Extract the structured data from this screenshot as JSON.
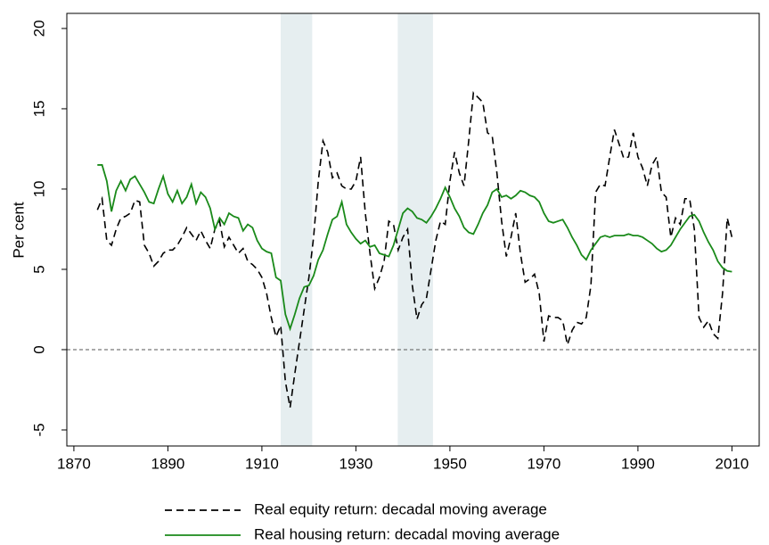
{
  "chart_data": {
    "type": "line",
    "y_label": "Per cent",
    "x": [
      1875,
      1876,
      1877,
      1878,
      1879,
      1880,
      1881,
      1882,
      1883,
      1884,
      1885,
      1886,
      1887,
      1888,
      1889,
      1890,
      1891,
      1892,
      1893,
      1894,
      1895,
      1896,
      1897,
      1898,
      1899,
      1900,
      1901,
      1902,
      1903,
      1904,
      1905,
      1906,
      1907,
      1908,
      1909,
      1910,
      1911,
      1912,
      1913,
      1914,
      1915,
      1916,
      1917,
      1918,
      1919,
      1920,
      1921,
      1922,
      1923,
      1924,
      1925,
      1926,
      1927,
      1928,
      1929,
      1930,
      1931,
      1932,
      1933,
      1934,
      1935,
      1936,
      1937,
      1938,
      1939,
      1940,
      1941,
      1942,
      1943,
      1944,
      1945,
      1946,
      1947,
      1948,
      1949,
      1950,
      1951,
      1952,
      1953,
      1954,
      1955,
      1956,
      1957,
      1958,
      1959,
      1960,
      1961,
      1962,
      1963,
      1964,
      1965,
      1966,
      1967,
      1968,
      1969,
      1970,
      1971,
      1972,
      1973,
      1974,
      1975,
      1976,
      1977,
      1978,
      1979,
      1980,
      1981,
      1982,
      1983,
      1984,
      1985,
      1986,
      1987,
      1988,
      1989,
      1990,
      1991,
      1992,
      1993,
      1994,
      1995,
      1996,
      1997,
      1998,
      1999,
      2000,
      2001,
      2002,
      2003,
      2004,
      2005,
      2006,
      2007,
      2008,
      2009,
      2010
    ],
    "series": [
      {
        "name": "Real equity return: decadal moving average",
        "color": "#000000",
        "dash": true,
        "values": [
          8.7,
          9.4,
          6.8,
          6.5,
          7.5,
          8.2,
          8.3,
          8.5,
          9.3,
          9.2,
          6.5,
          6.0,
          5.2,
          5.5,
          6.0,
          6.2,
          6.2,
          6.5,
          7.0,
          7.6,
          7.2,
          6.8,
          7.4,
          6.8,
          6.3,
          7.5,
          8.0,
          6.4,
          7.0,
          6.5,
          6.0,
          6.3,
          5.5,
          5.3,
          5.0,
          4.5,
          3.5,
          2.0,
          0.8,
          1.5,
          -2.0,
          -3.6,
          -1.5,
          0.5,
          2.5,
          4.5,
          7.0,
          10.5,
          13.0,
          12.3,
          10.7,
          11.0,
          10.2,
          10.0,
          10.0,
          10.5,
          12.0,
          8.5,
          6.0,
          3.8,
          4.5,
          5.5,
          8.0,
          7.8,
          6.2,
          7.0,
          7.5,
          4.0,
          1.9,
          2.8,
          3.2,
          5.0,
          6.8,
          8.0,
          7.8,
          10.5,
          12.3,
          11.0,
          10.2,
          13.0,
          16.0,
          15.7,
          15.4,
          13.5,
          13.3,
          11.0,
          8.0,
          5.8,
          7.0,
          8.5,
          6.0,
          4.2,
          4.4,
          4.7,
          3.5,
          0.5,
          2.1,
          2.0,
          2.0,
          1.8,
          0.3,
          1.2,
          1.7,
          1.6,
          2.0,
          4.0,
          9.8,
          10.3,
          10.2,
          12.0,
          13.7,
          12.8,
          11.9,
          12.0,
          13.5,
          12.0,
          11.3,
          10.2,
          11.5,
          12.0,
          9.8,
          9.5,
          7.0,
          8.2,
          7.8,
          9.4,
          9.4,
          7.5,
          2.0,
          1.4,
          1.8,
          1.0,
          0.7,
          3.5,
          8.2,
          7.0
        ]
      },
      {
        "name": "Real housing return: decadal moving average",
        "color": "#1a8a1a",
        "dash": false,
        "values": [
          11.5,
          11.5,
          10.5,
          8.6,
          9.9,
          10.5,
          9.9,
          10.6,
          10.8,
          10.3,
          9.8,
          9.2,
          9.1,
          10.0,
          10.8,
          9.7,
          9.2,
          9.9,
          9.1,
          9.5,
          10.3,
          9.1,
          9.8,
          9.5,
          8.8,
          7.5,
          8.2,
          7.8,
          8.5,
          8.3,
          8.2,
          7.4,
          7.8,
          7.6,
          6.8,
          6.3,
          6.1,
          6.0,
          4.5,
          4.3,
          2.2,
          1.3,
          2.2,
          3.2,
          3.9,
          4.0,
          4.6,
          5.6,
          6.2,
          7.2,
          8.1,
          8.3,
          9.2,
          7.8,
          7.3,
          6.9,
          6.6,
          6.8,
          6.4,
          6.5,
          6.0,
          5.9,
          5.8,
          6.5,
          7.5,
          8.5,
          8.8,
          8.6,
          8.2,
          8.1,
          7.9,
          8.3,
          8.8,
          9.4,
          10.1,
          9.5,
          8.8,
          8.3,
          7.6,
          7.3,
          7.2,
          7.8,
          8.5,
          9.0,
          9.8,
          10.0,
          9.5,
          9.6,
          9.4,
          9.6,
          9.9,
          9.8,
          9.6,
          9.5,
          9.2,
          8.5,
          8.0,
          7.9,
          8.0,
          8.1,
          7.6,
          7.0,
          6.5,
          5.9,
          5.6,
          6.2,
          6.6,
          7.0,
          7.1,
          7.0,
          7.1,
          7.1,
          7.1,
          7.2,
          7.1,
          7.1,
          7.0,
          6.8,
          6.6,
          6.3,
          6.1,
          6.2,
          6.5,
          7.0,
          7.5,
          7.9,
          8.3,
          8.4,
          8.0,
          7.3,
          6.7,
          6.2,
          5.5,
          5.1,
          4.9,
          4.85
        ]
      }
    ],
    "shaded_periods": [
      [
        1914,
        1920.7
      ],
      [
        1938.9,
        1946.4
      ]
    ],
    "shade_color": "#e6eef0",
    "reference_line": 0,
    "xlim": [
      1868.5,
      2015.8
    ],
    "ylim": [
      -6,
      20.94
    ],
    "xticks": [
      1870,
      1890,
      1910,
      1930,
      1950,
      1970,
      1990,
      2010
    ],
    "yticks": [
      -5,
      0,
      5,
      10,
      15,
      20
    ],
    "grid": false
  }
}
